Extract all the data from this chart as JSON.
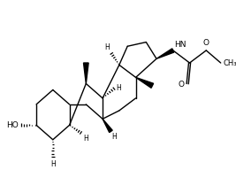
{
  "bg_color": "#ffffff",
  "line_color": "#000000",
  "lw": 1.0,
  "figsize": [
    2.67,
    1.92
  ],
  "dpi": 100,
  "xlim": [
    -0.5,
    10.0
  ],
  "ylim": [
    -0.5,
    7.5
  ]
}
